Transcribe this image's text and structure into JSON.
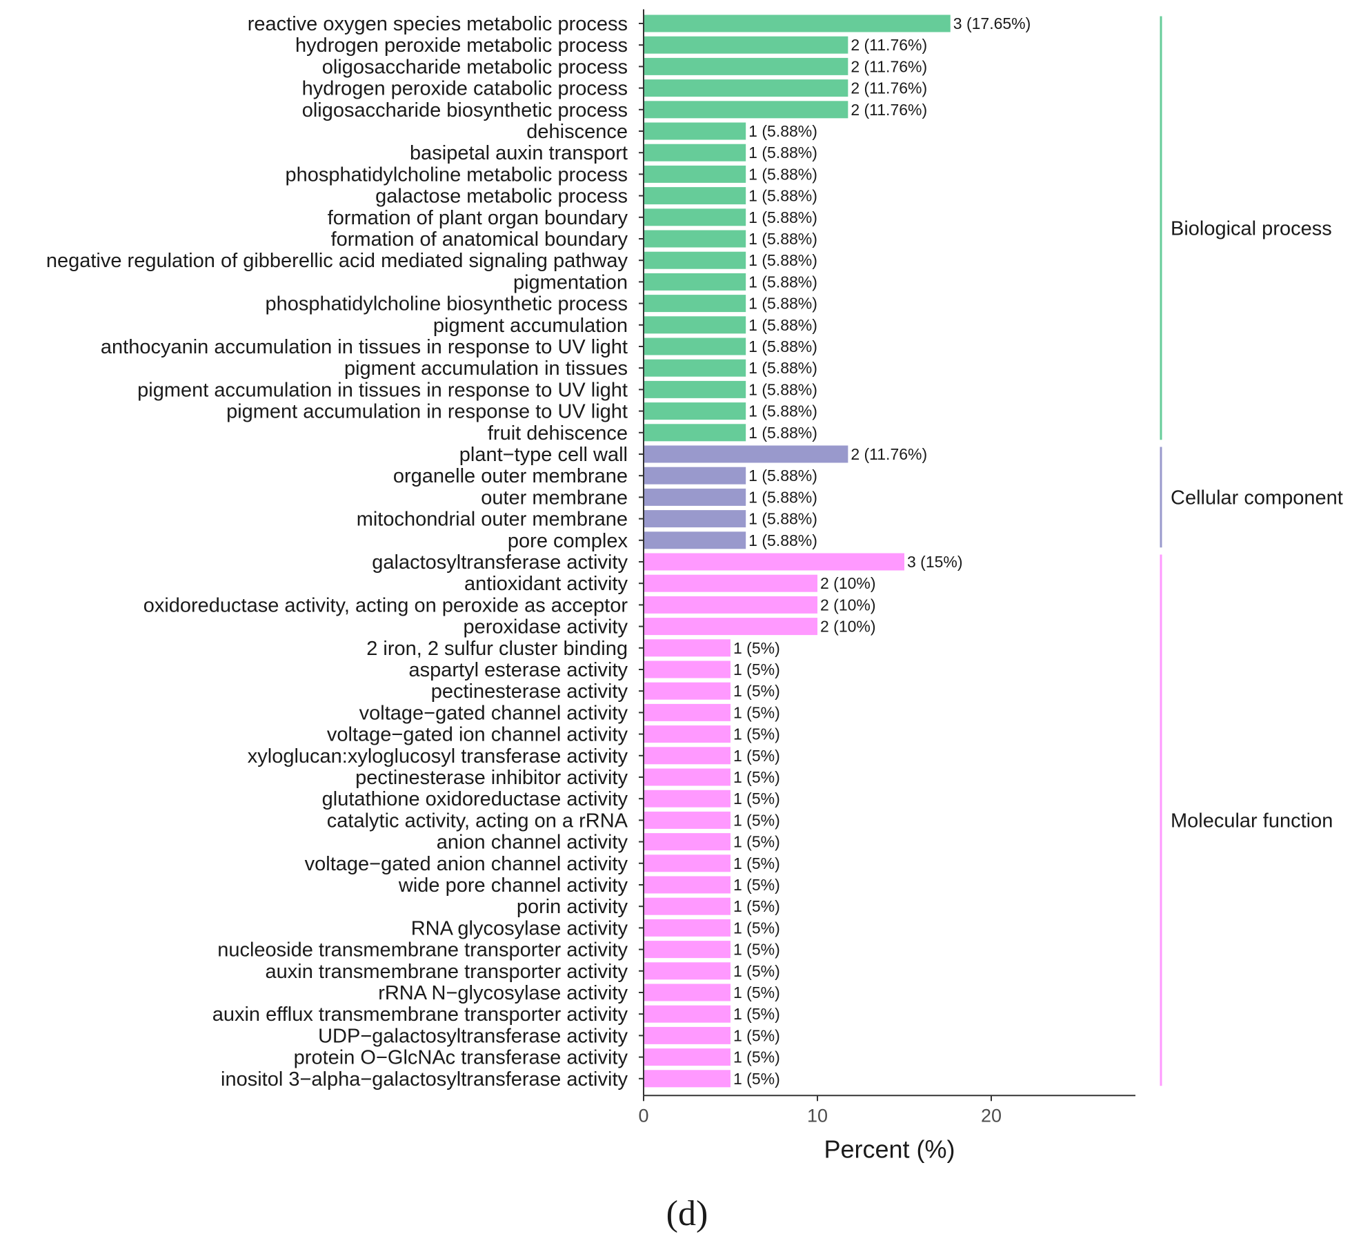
{
  "chart_data": {
    "type": "bar",
    "orientation": "horizontal",
    "xlabel": "Percent (%)",
    "xlim": [
      0,
      28
    ],
    "xticks": [
      0,
      10,
      20
    ],
    "panel_label": "(d)",
    "colors": {
      "Biological process": "#66cc99",
      "Cellular component": "#9999cc",
      "Molecular function": "#ff99ff"
    },
    "groups": [
      {
        "name": "Biological process",
        "items": [
          {
            "term": "reactive oxygen species metabolic process",
            "value": 17.65,
            "label": "3 (17.65%)"
          },
          {
            "term": "hydrogen peroxide metabolic process",
            "value": 11.76,
            "label": "2 (11.76%)"
          },
          {
            "term": "oligosaccharide metabolic process",
            "value": 11.76,
            "label": "2 (11.76%)"
          },
          {
            "term": "hydrogen peroxide catabolic process",
            "value": 11.76,
            "label": "2 (11.76%)"
          },
          {
            "term": "oligosaccharide biosynthetic process",
            "value": 11.76,
            "label": "2 (11.76%)"
          },
          {
            "term": "dehiscence",
            "value": 5.88,
            "label": "1 (5.88%)"
          },
          {
            "term": "basipetal auxin transport",
            "value": 5.88,
            "label": "1 (5.88%)"
          },
          {
            "term": "phosphatidylcholine metabolic process",
            "value": 5.88,
            "label": "1 (5.88%)"
          },
          {
            "term": "galactose metabolic process",
            "value": 5.88,
            "label": "1 (5.88%)"
          },
          {
            "term": "formation of plant organ boundary",
            "value": 5.88,
            "label": "1 (5.88%)"
          },
          {
            "term": "formation of anatomical boundary",
            "value": 5.88,
            "label": "1 (5.88%)"
          },
          {
            "term": "negative regulation of gibberellic acid mediated signaling pathway",
            "value": 5.88,
            "label": "1 (5.88%)"
          },
          {
            "term": "pigmentation",
            "value": 5.88,
            "label": "1 (5.88%)"
          },
          {
            "term": "phosphatidylcholine biosynthetic process",
            "value": 5.88,
            "label": "1 (5.88%)"
          },
          {
            "term": "pigment accumulation",
            "value": 5.88,
            "label": "1 (5.88%)"
          },
          {
            "term": "anthocyanin accumulation in tissues in response to UV light",
            "value": 5.88,
            "label": "1 (5.88%)"
          },
          {
            "term": "pigment accumulation in tissues",
            "value": 5.88,
            "label": "1 (5.88%)"
          },
          {
            "term": "pigment accumulation in tissues in response to UV light",
            "value": 5.88,
            "label": "1 (5.88%)"
          },
          {
            "term": "pigment accumulation in response to UV light",
            "value": 5.88,
            "label": "1 (5.88%)"
          },
          {
            "term": "fruit dehiscence",
            "value": 5.88,
            "label": "1 (5.88%)"
          }
        ]
      },
      {
        "name": "Cellular component",
        "items": [
          {
            "term": "plant−type cell wall",
            "value": 11.76,
            "label": "2 (11.76%)"
          },
          {
            "term": "organelle outer membrane",
            "value": 5.88,
            "label": "1 (5.88%)"
          },
          {
            "term": "outer membrane",
            "value": 5.88,
            "label": "1 (5.88%)"
          },
          {
            "term": "mitochondrial outer membrane",
            "value": 5.88,
            "label": "1 (5.88%)"
          },
          {
            "term": "pore complex",
            "value": 5.88,
            "label": "1 (5.88%)"
          }
        ]
      },
      {
        "name": "Molecular function",
        "items": [
          {
            "term": "galactosyltransferase activity",
            "value": 15,
            "label": "3 (15%)"
          },
          {
            "term": "antioxidant activity",
            "value": 10,
            "label": "2 (10%)"
          },
          {
            "term": "oxidoreductase activity, acting on peroxide as acceptor",
            "value": 10,
            "label": "2 (10%)"
          },
          {
            "term": "peroxidase activity",
            "value": 10,
            "label": "2 (10%)"
          },
          {
            "term": "2 iron, 2 sulfur cluster binding",
            "value": 5,
            "label": "1 (5%)"
          },
          {
            "term": "aspartyl esterase activity",
            "value": 5,
            "label": "1 (5%)"
          },
          {
            "term": "pectinesterase activity",
            "value": 5,
            "label": "1 (5%)"
          },
          {
            "term": "voltage−gated channel activity",
            "value": 5,
            "label": "1 (5%)"
          },
          {
            "term": "voltage−gated ion channel activity",
            "value": 5,
            "label": "1 (5%)"
          },
          {
            "term": "xyloglucan:xyloglucosyl transferase activity",
            "value": 5,
            "label": "1 (5%)"
          },
          {
            "term": "pectinesterase inhibitor activity",
            "value": 5,
            "label": "1 (5%)"
          },
          {
            "term": "glutathione oxidoreductase activity",
            "value": 5,
            "label": "1 (5%)"
          },
          {
            "term": "catalytic activity, acting on a rRNA",
            "value": 5,
            "label": "1 (5%)"
          },
          {
            "term": "anion channel activity",
            "value": 5,
            "label": "1 (5%)"
          },
          {
            "term": "voltage−gated anion channel activity",
            "value": 5,
            "label": "1 (5%)"
          },
          {
            "term": "wide pore channel activity",
            "value": 5,
            "label": "1 (5%)"
          },
          {
            "term": "porin activity",
            "value": 5,
            "label": "1 (5%)"
          },
          {
            "term": "RNA glycosylase activity",
            "value": 5,
            "label": "1 (5%)"
          },
          {
            "term": "nucleoside transmembrane transporter activity",
            "value": 5,
            "label": "1 (5%)"
          },
          {
            "term": "auxin transmembrane transporter activity",
            "value": 5,
            "label": "1 (5%)"
          },
          {
            "term": "rRNA N−glycosylase activity",
            "value": 5,
            "label": "1 (5%)"
          },
          {
            "term": "auxin efflux transmembrane transporter activity",
            "value": 5,
            "label": "1 (5%)"
          },
          {
            "term": "UDP−galactosyltransferase activity",
            "value": 5,
            "label": "1 (5%)"
          },
          {
            "term": "protein O−GlcNAc transferase activity",
            "value": 5,
            "label": "1 (5%)"
          },
          {
            "term": "inositol 3−alpha−galactosyltransferase activity",
            "value": 5,
            "label": "1 (5%)"
          }
        ]
      }
    ]
  }
}
